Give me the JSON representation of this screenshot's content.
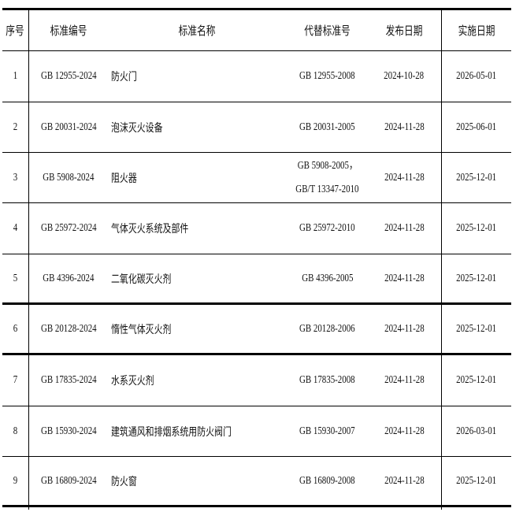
{
  "headers": [
    "序号",
    "标准编号",
    "标准名称",
    "代替标准号",
    "发布日期",
    "实施日期"
  ],
  "rows": [
    {
      "no": "1",
      "code": "GB 12955-2024",
      "name": "防火门",
      "replaces": [
        "GB 12955-2008"
      ],
      "published": "2024-10-28",
      "effective": "2026-05-01"
    },
    {
      "no": "2",
      "code": "GB 20031-2024",
      "name": "泡沫灭火设备",
      "replaces": [
        "GB 20031-2005"
      ],
      "published": "2024-11-28",
      "effective": "2025-06-01"
    },
    {
      "no": "3",
      "code": "GB 5908-2024",
      "name": "阻火器",
      "replaces": [
        "GB 5908-2005，",
        "GB/T 13347-2010"
      ],
      "published": "2024-11-28",
      "effective": "2025-12-01"
    },
    {
      "no": "4",
      "code": "GB 25972-2024",
      "name": "气体灭火系统及部件",
      "replaces": [
        "GB 25972-2010"
      ],
      "published": "2024-11-28",
      "effective": "2025-12-01"
    },
    {
      "no": "5",
      "code": "GB 4396-2024",
      "name": "二氧化碳灭火剂",
      "replaces": [
        "GB 4396-2005"
      ],
      "published": "2024-11-28",
      "effective": "2025-12-01"
    },
    {
      "no": "6",
      "code": "GB 20128-2024",
      "name": "惰性气体灭火剂",
      "replaces": [
        "GB 20128-2006"
      ],
      "published": "2024-11-28",
      "effective": "2025-12-01"
    },
    {
      "no": "7",
      "code": "GB 17835-2024",
      "name": "水系灭火剂",
      "replaces": [
        "GB 17835-2008"
      ],
      "published": "2024-11-28",
      "effective": "2025-12-01"
    },
    {
      "no": "8",
      "code": "GB 15930-2024",
      "name": "建筑通风和排烟系统用防火阀门",
      "replaces": [
        "GB 15930-2007"
      ],
      "published": "2024-11-28",
      "effective": "2026-03-01"
    },
    {
      "no": "9",
      "code": "GB 16809-2024",
      "name": "防火窗",
      "replaces": [
        "GB 16809-2008"
      ],
      "published": "2024-11-28",
      "effective": "2025-12-01"
    }
  ]
}
